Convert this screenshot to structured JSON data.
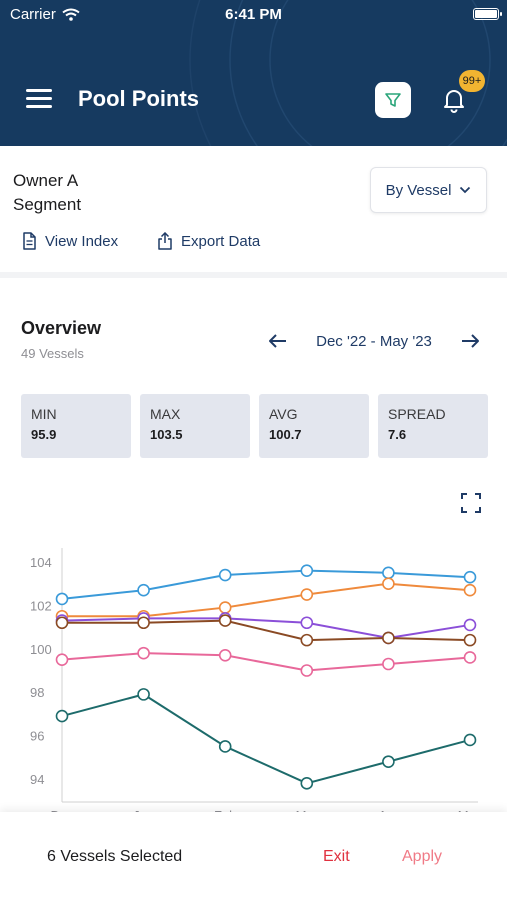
{
  "status_bar": {
    "carrier": "Carrier",
    "time": "6:41 PM"
  },
  "header": {
    "title": "Pool Points",
    "notification_count": "99+"
  },
  "owner": {
    "name": "Owner A",
    "segment": "Segment"
  },
  "group_by": {
    "selected": "By Vessel"
  },
  "links": {
    "view_index": "View Index",
    "export_data": "Export Data"
  },
  "overview": {
    "title": "Overview",
    "subtitle": "49 Vessels",
    "date_range": "Dec '22 - May '23",
    "stats": [
      {
        "label": "MIN",
        "value": "95.9"
      },
      {
        "label": "MAX",
        "value": "103.5"
      },
      {
        "label": "AVG",
        "value": "100.7"
      },
      {
        "label": "SPREAD",
        "value": "7.6"
      }
    ]
  },
  "chart_data": {
    "type": "line",
    "x": [
      "Dec",
      "Jan",
      "Feb",
      "Mar",
      "Apr",
      "May"
    ],
    "yticks": [
      "104",
      "102",
      "100",
      "98",
      "96",
      "94"
    ],
    "ylim": [
      93,
      105
    ],
    "grid": false,
    "series": [
      {
        "color": "#3a9ad9",
        "values": [
          102.3,
          102.7,
          103.4,
          103.6,
          103.5,
          103.3
        ]
      },
      {
        "color": "#ef8a3c",
        "values": [
          101.5,
          101.5,
          101.9,
          102.5,
          103.0,
          102.7
        ]
      },
      {
        "color": "#8b4fd8",
        "values": [
          101.3,
          101.4,
          101.4,
          101.2,
          100.5,
          101.1
        ]
      },
      {
        "color": "#8a4a24",
        "values": [
          101.2,
          101.2,
          101.3,
          100.4,
          100.5,
          100.4
        ]
      },
      {
        "color": "#e8689a",
        "values": [
          99.5,
          99.8,
          99.7,
          99.0,
          99.3,
          99.6
        ]
      },
      {
        "color": "#1d6b6b",
        "values": [
          96.9,
          97.9,
          95.5,
          93.8,
          94.8,
          95.8
        ]
      }
    ]
  },
  "bottom_bar": {
    "selected_text": "6 Vessels Selected",
    "exit_label": "Exit",
    "apply_label": "Apply"
  },
  "colors": {
    "header_bg": "#163a60",
    "accent": "#1f3b66",
    "exit": "#e0313f",
    "apply": "#f07a86",
    "badge": "#f2b431"
  }
}
